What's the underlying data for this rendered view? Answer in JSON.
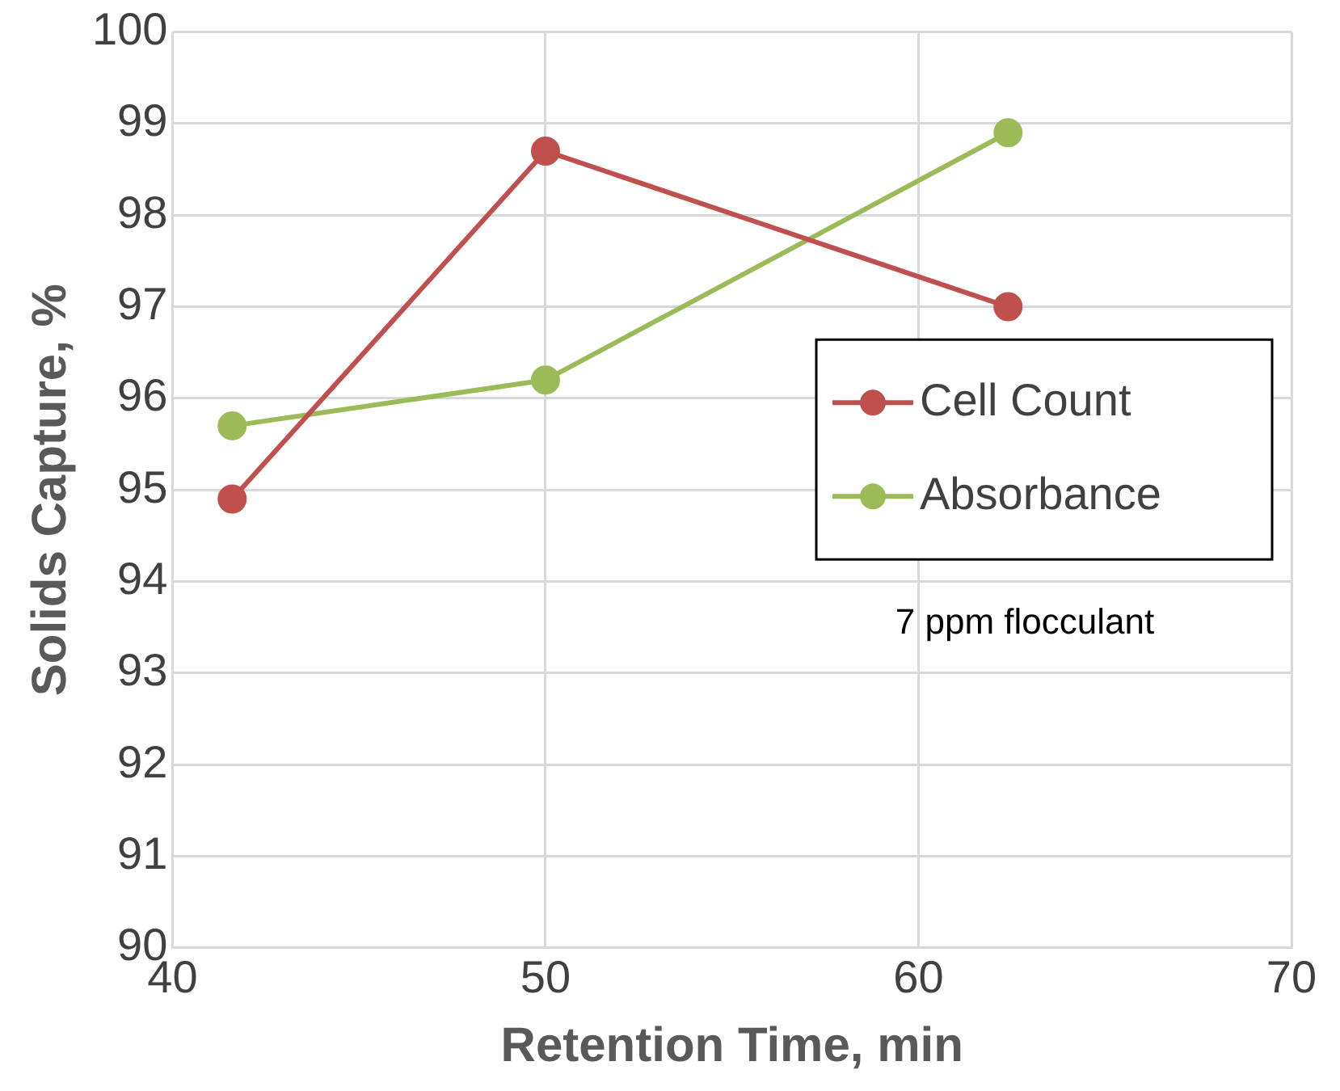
{
  "chart_data": {
    "type": "line",
    "xlabel": "Retention Time, min",
    "ylabel": "Solids Capture, %",
    "x": [
      41.6,
      50,
      62.4
    ],
    "series": [
      {
        "name": "Cell Count",
        "color": "#c0504d",
        "values": [
          94.9,
          98.7,
          97.0
        ]
      },
      {
        "name": "Absorbance",
        "color": "#9bbb59",
        "values": [
          95.7,
          96.2,
          98.9
        ]
      }
    ],
    "xlim": [
      40,
      70
    ],
    "xticks": [
      40,
      50,
      60,
      70
    ],
    "ylim": [
      90,
      100
    ],
    "yticks": [
      90,
      91,
      92,
      93,
      94,
      95,
      96,
      97,
      98,
      99,
      100
    ],
    "grid": true,
    "legend": "center right",
    "marker": "circle",
    "line_style": "solid",
    "annotations": [
      "7 ppm flocculant"
    ]
  }
}
